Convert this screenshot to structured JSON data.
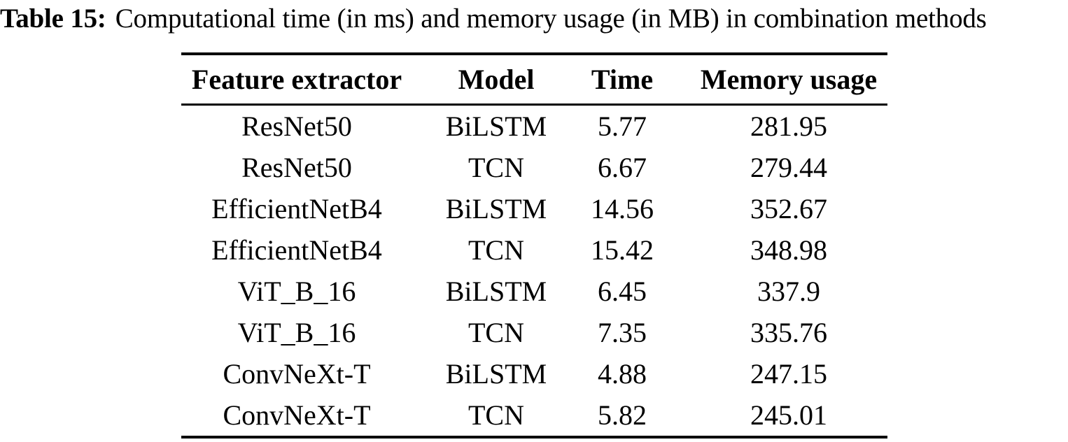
{
  "page": {
    "background_color": "#ffffff",
    "text_color": "#000000"
  },
  "caption": {
    "label": "Table 15:",
    "text": "Computational time (in ms) and memory usage (in MB) in combination methods"
  },
  "table": {
    "headers": [
      "Feature extractor",
      "Model",
      "Time",
      "Memory usage"
    ],
    "rows": [
      [
        "ResNet50",
        "BiLSTM",
        "5.77",
        "281.95"
      ],
      [
        "ResNet50",
        "TCN",
        "6.67",
        "279.44"
      ],
      [
        "EfficientNetB4",
        "BiLSTM",
        "14.56",
        "352.67"
      ],
      [
        "EfficientNetB4",
        "TCN",
        "15.42",
        "348.98"
      ],
      [
        "ViT_B_16",
        "BiLSTM",
        "6.45",
        "337.9"
      ],
      [
        "ViT_B_16",
        "TCN",
        "7.35",
        "335.76"
      ],
      [
        "ConvNeXt-T",
        "BiLSTM",
        "4.88",
        "247.15"
      ],
      [
        "ConvNeXt-T",
        "TCN",
        "5.82",
        "245.01"
      ]
    ]
  }
}
